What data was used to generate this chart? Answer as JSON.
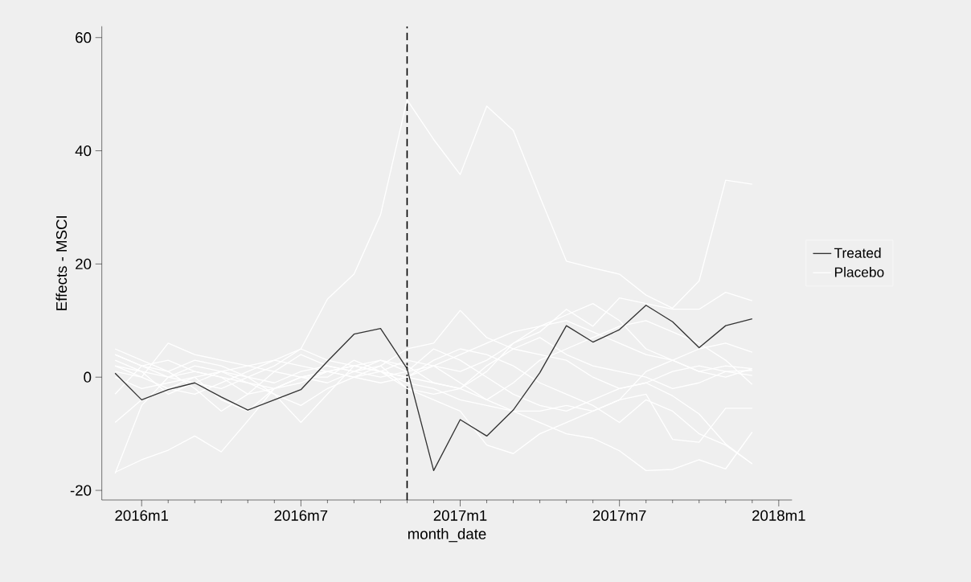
{
  "chart_data": {
    "type": "line",
    "xlabel": "month_date",
    "ylabel": "Effects - MSCI",
    "x": [
      "2015-12",
      "2016-01",
      "2016-02",
      "2016-03",
      "2016-04",
      "2016-05",
      "2016-06",
      "2016-07",
      "2016-08",
      "2016-09",
      "2016-10",
      "2016-11",
      "2016-12",
      "2017-01",
      "2017-02",
      "2017-03",
      "2017-04",
      "2017-05",
      "2017-06",
      "2017-07",
      "2017-08",
      "2017-09",
      "2017-10",
      "2017-11",
      "2017-12"
    ],
    "xlim": [
      "2015-11-16",
      "2018-01-16"
    ],
    "ylim": [
      -21.7,
      62
    ],
    "xticks": [
      {
        "value": "2016-01",
        "label": "2016m1"
      },
      {
        "value": "2016-07",
        "label": "2016m7"
      },
      {
        "value": "2017-01",
        "label": "2017m1"
      },
      {
        "value": "2017-07",
        "label": "2017m7"
      },
      {
        "value": "2018-01",
        "label": "2018m1"
      }
    ],
    "yticks": [
      -20,
      0,
      20,
      40,
      60
    ],
    "legend": "right",
    "marker": "none",
    "line_style": "solid",
    "ref_lines": [
      {
        "axis": "x",
        "value": "2016-11",
        "color": "#000000",
        "line_style": "dashed"
      }
    ],
    "series": [
      {
        "name": "Treated",
        "color": "#333333",
        "values": [
          0.7,
          -4,
          -2.2,
          -1,
          -3.5,
          -5.8,
          -4,
          -2.2,
          2.8,
          7.6,
          8.6,
          1.5,
          -16.5,
          -7.5,
          -10.4,
          -5.8,
          0.8,
          9.1,
          6.2,
          8.4,
          12.7,
          9.8,
          5.2,
          9.1,
          10.3
        ]
      },
      {
        "name": "Placebo",
        "color": "#ffffff",
        "values": [
          4,
          2,
          0,
          -1,
          1,
          2,
          3,
          5,
          13.8,
          18.2,
          28.7,
          49,
          42,
          35.8,
          47.9,
          43.6,
          31.9,
          20.5,
          19.3,
          18.2,
          14.5,
          12.2,
          17,
          34.8,
          34.1
        ]
      },
      {
        "color": "#ffffff",
        "values": [
          -16.8,
          -14.6,
          -12.9,
          -10.4,
          -13.2,
          -7.7,
          -2,
          0,
          1,
          2,
          1,
          0,
          3,
          5,
          4,
          2,
          -1,
          -3,
          -5,
          -8,
          -4,
          -6,
          -10,
          -12,
          -15.3
        ]
      },
      {
        "color": "#ffffff",
        "values": [
          -17,
          -5,
          0,
          2,
          1,
          0,
          -1,
          1,
          2,
          1,
          3,
          2,
          -1,
          -2,
          1,
          6,
          9,
          11,
          13,
          10,
          5,
          3,
          1,
          2,
          1.5
        ]
      },
      {
        "color": "#ffffff",
        "values": [
          -8,
          -4,
          -2,
          0,
          1,
          -1,
          -3,
          -5,
          -2,
          0,
          1,
          3,
          2,
          -1,
          -4,
          -6,
          -8,
          -10,
          -10.8,
          -13,
          -16.5,
          -16.3,
          -14.6,
          -16.2,
          -9.7
        ]
      },
      {
        "color": "#ffffff",
        "values": [
          5,
          3,
          1,
          -2,
          -6,
          -3,
          1,
          4,
          2,
          1,
          0,
          1,
          5,
          3,
          0,
          -3,
          -5,
          -6,
          -4,
          -2,
          -1,
          -3.3,
          -6.5,
          -11.8,
          -15.3
        ]
      },
      {
        "color": "#ffffff",
        "values": [
          3,
          1,
          -3,
          -1,
          -2,
          0,
          2,
          5,
          3,
          2,
          1,
          -1,
          -2,
          -4,
          -5,
          -6,
          -6,
          -5,
          -6,
          -4,
          -3,
          -11,
          -11.5,
          -5.5,
          -5.5
        ]
      },
      {
        "color": "#ffffff",
        "values": [
          2,
          0,
          6,
          4,
          3,
          2,
          1,
          0,
          -1,
          1,
          2,
          5,
          6,
          11.8,
          7,
          5,
          4,
          3,
          0,
          -2,
          -1,
          1,
          2,
          1,
          0.3
        ]
      },
      {
        "color": "#ffffff",
        "values": [
          0,
          -2,
          -1,
          0,
          -4,
          -6,
          -2,
          0,
          1,
          2,
          1,
          -2,
          -4,
          -6,
          -12,
          -13.5,
          -10,
          -8,
          -6,
          -4,
          1,
          3,
          1,
          0,
          1.5
        ]
      },
      {
        "color": "#ffffff",
        "values": [
          4,
          2,
          1,
          3,
          2,
          0,
          -3,
          -8,
          -3,
          2,
          3,
          1,
          2,
          1,
          3,
          6,
          8,
          12,
          9,
          14,
          13,
          12,
          12,
          15,
          13.5
        ]
      },
      {
        "color": "#ffffff",
        "values": [
          1,
          0,
          -2,
          -3,
          -1,
          1,
          3,
          2,
          1,
          0,
          -1,
          0,
          2,
          4,
          6,
          8,
          9,
          10,
          8,
          6,
          4,
          3,
          5,
          6,
          4.4
        ]
      },
      {
        "color": "#ffffff",
        "values": [
          2,
          1,
          0,
          1,
          0,
          -1,
          -2,
          -1,
          1,
          0,
          2,
          -2,
          -3,
          -2,
          -4,
          -1,
          3,
          5,
          7,
          9,
          10,
          8,
          6,
          3,
          -1.3
        ]
      },
      {
        "color": "#ffffff",
        "values": [
          -3,
          2,
          3,
          1,
          0,
          -3,
          -2,
          0,
          0,
          3,
          1,
          0,
          -1,
          -2,
          2,
          5,
          7,
          4,
          2,
          1,
          0,
          -2,
          -1,
          1,
          1.2
        ]
      }
    ]
  }
}
